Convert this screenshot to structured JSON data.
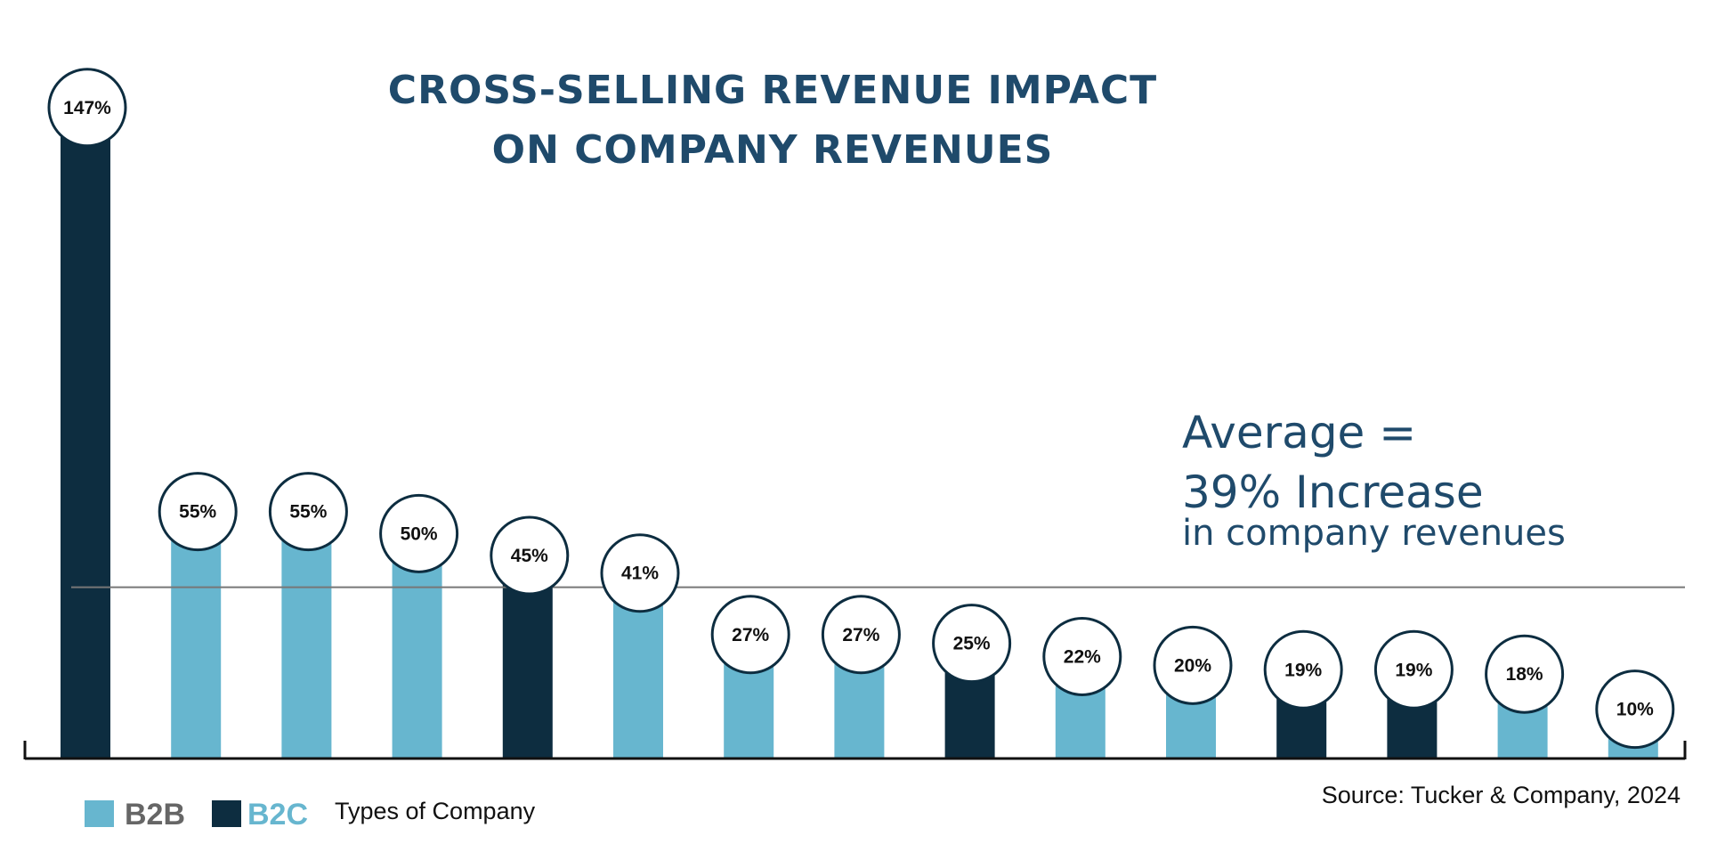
{
  "chart_data": {
    "type": "bar",
    "title": [
      "CROSS-SELLING REVENUE IMPACT",
      "ON COMPANY REVENUES"
    ],
    "values": [
      147,
      55,
      55,
      50,
      45,
      41,
      27,
      27,
      25,
      22,
      20,
      19,
      19,
      18,
      10
    ],
    "labels": [
      "147%",
      "55%",
      "55%",
      "50%",
      "45%",
      "41%",
      "27%",
      "27%",
      "25%",
      "22%",
      "20%",
      "19%",
      "19%",
      "18%",
      "10%"
    ],
    "company_type": [
      "B2C",
      "B2B",
      "B2B",
      "B2B",
      "B2C",
      "B2B",
      "B2B",
      "B2B",
      "B2C",
      "B2B",
      "B2B",
      "B2C",
      "B2C",
      "B2B",
      "B2B"
    ],
    "average": 39,
    "average_text": {
      "line1": "Average =",
      "line2": "39% Increase",
      "line3": "in company revenues"
    },
    "legend": {
      "b2b": "B2B",
      "b2c": "B2C",
      "caption": "Types of Company",
      "placement": "bottom-left"
    },
    "source": "Source:  Tucker & Company, 2024",
    "colors": {
      "B2B": "#67b6cf",
      "B2C": "#0d2d40",
      "title": "#1f4a6b",
      "average_line": "#777777",
      "axis": "#111111"
    },
    "ylim": [
      0,
      150
    ],
    "grid": false
  }
}
